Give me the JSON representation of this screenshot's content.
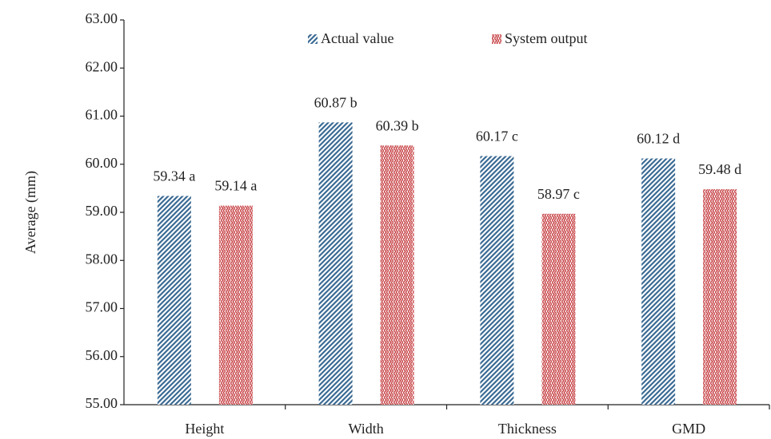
{
  "chart_data": {
    "type": "bar",
    "y_label": "Average (mm)",
    "categories": [
      "Height",
      "Width",
      "Thickness",
      "GMD"
    ],
    "series": [
      {
        "name": "Actual value",
        "color": "#3b6b94",
        "values": [
          59.34,
          60.87,
          60.17,
          60.12
        ],
        "value_labels": [
          "59.34 a",
          "60.87 b",
          "60.17 c",
          "60.12 d"
        ]
      },
      {
        "name": "System output",
        "color": "#c9484b",
        "values": [
          59.14,
          60.39,
          58.97,
          59.48
        ],
        "value_labels": [
          "59.14 a",
          "60.39 b",
          "58.97 c",
          "59.48 d"
        ]
      }
    ],
    "ylim": [
      55,
      63
    ],
    "yticks": [
      {
        "value": 55,
        "label": "55.00"
      },
      {
        "value": 56,
        "label": "56.00"
      },
      {
        "value": 57,
        "label": "57.00"
      },
      {
        "value": 58,
        "label": "58.00"
      },
      {
        "value": 59,
        "label": "59.00"
      },
      {
        "value": 60,
        "label": "60.00"
      },
      {
        "value": 61,
        "label": "61.00"
      },
      {
        "value": 62,
        "label": "62.00"
      },
      {
        "value": 63,
        "label": "63.00"
      }
    ],
    "grid": false,
    "legend": "top"
  }
}
